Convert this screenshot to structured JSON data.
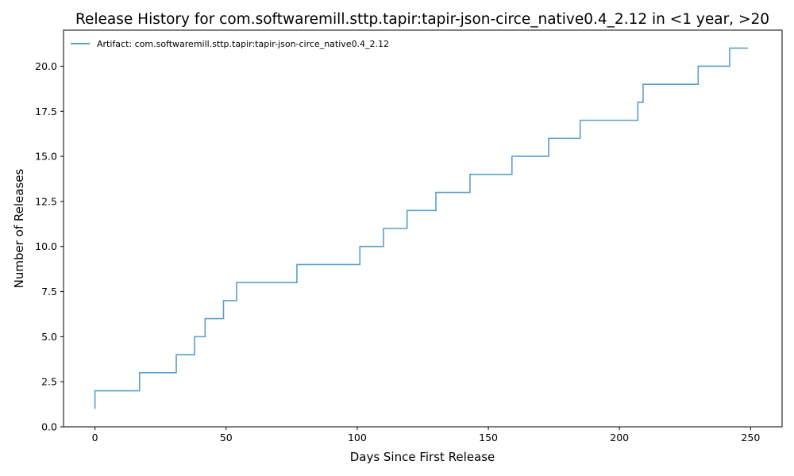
{
  "chart_data": {
    "type": "line",
    "title": "Release History for com.softwaremill.sttp.tapir:tapir-json-circe_native0.4_2.12 in <1 year, >20",
    "xlabel": "Days Since First Release",
    "ylabel": "Number of Releases",
    "xlim": [
      -12,
      262
    ],
    "ylim": [
      0,
      22
    ],
    "xticks": [
      0,
      50,
      100,
      150,
      200,
      250
    ],
    "yticks": [
      "0.0",
      "2.5",
      "5.0",
      "7.5",
      "10.0",
      "12.5",
      "15.0",
      "17.5",
      "20.0"
    ],
    "grid": false,
    "legend_position": "top-left",
    "step": "post",
    "series": [
      {
        "name": "Artifact: com.softwaremill.sttp.tapir:tapir-json-circe_native0.4_2.12",
        "color": "#5b9fcd",
        "points": [
          [
            0,
            1
          ],
          [
            0,
            2
          ],
          [
            17,
            3
          ],
          [
            31,
            4
          ],
          [
            38,
            5
          ],
          [
            42,
            6
          ],
          [
            49,
            7
          ],
          [
            54,
            8
          ],
          [
            77,
            9
          ],
          [
            101,
            10
          ],
          [
            110,
            11
          ],
          [
            119,
            12
          ],
          [
            130,
            13
          ],
          [
            143,
            14
          ],
          [
            159,
            15
          ],
          [
            173,
            16
          ],
          [
            185,
            17
          ],
          [
            207,
            18
          ],
          [
            209,
            19
          ],
          [
            230,
            20
          ],
          [
            242,
            21
          ],
          [
            249,
            21
          ]
        ]
      }
    ]
  }
}
